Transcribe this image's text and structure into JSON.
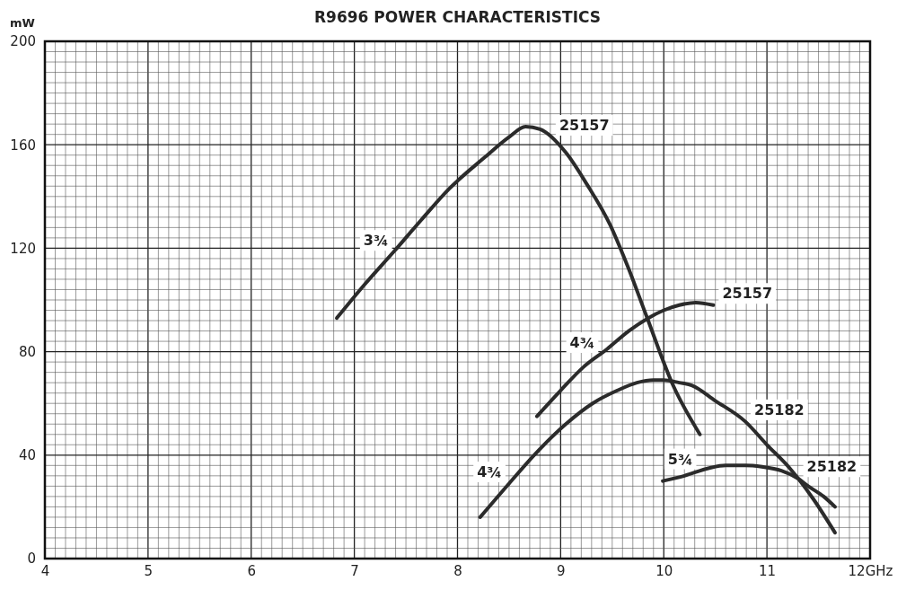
{
  "chart_data": {
    "type": "line",
    "title": "R9696 POWER CHARACTERISTICS",
    "ylabel": "mW",
    "xlim": [
      4,
      12
    ],
    "xticks": [
      4,
      5,
      6,
      7,
      8,
      9,
      10,
      11,
      {
        "value": 12,
        "label": "12GHz"
      }
    ],
    "ylim": [
      0,
      200
    ],
    "yticks": [
      0,
      40,
      80,
      120,
      160,
      200
    ],
    "grid": true,
    "marker": "none",
    "line_style": "solid",
    "series": [
      {
        "color": "#2b2b2b",
        "x": [
          6.83,
          7.1,
          7.39,
          7.65,
          7.92,
          8.26,
          8.5,
          8.66,
          8.8,
          9.05,
          9.25,
          9.48,
          9.65,
          9.83,
          10.09,
          10.35
        ],
        "values": [
          93,
          106,
          119,
          131,
          143,
          155,
          163,
          167,
          166,
          157,
          145,
          129,
          113,
          94,
          67,
          48
        ]
      },
      {
        "color": "#2b2b2b",
        "x": [
          8.77,
          9.0,
          9.22,
          9.45,
          9.66,
          9.85,
          10.0,
          10.15,
          10.31,
          10.48
        ],
        "values": [
          55,
          65,
          74,
          81,
          88,
          93,
          96,
          98,
          99,
          98
        ]
      },
      {
        "color": "#2b2b2b",
        "x": [
          8.22,
          8.5,
          8.79,
          9.05,
          9.31,
          9.55,
          9.74,
          9.9,
          10.0,
          10.15,
          10.27,
          10.5,
          10.79,
          11.0,
          11.22,
          11.45,
          11.66
        ],
        "values": [
          16,
          29,
          42,
          52,
          60,
          65,
          68,
          69,
          69,
          68,
          67,
          61,
          53,
          44,
          35,
          23,
          10
        ]
      },
      {
        "color": "#2b2b2b",
        "x": [
          9.99,
          10.2,
          10.44,
          10.6,
          10.79,
          10.95,
          11.14,
          11.3,
          11.4,
          11.55,
          11.66
        ],
        "values": [
          30,
          32,
          35,
          36,
          36,
          35.5,
          34,
          31,
          28,
          24,
          20
        ]
      }
    ],
    "annotations": [
      {
        "text": "25157",
        "x": 8.9,
        "y": 163
      },
      {
        "text": "3¾",
        "x": 7.4,
        "y": 118.5
      },
      {
        "text": "25157",
        "x": 10.48,
        "y": 98
      },
      {
        "text": "4¾",
        "x": 9.4,
        "y": 79
      },
      {
        "text": "25182",
        "x": 10.79,
        "y": 53
      },
      {
        "text": "4¾",
        "x": 8.5,
        "y": 29
      },
      {
        "text": "25182",
        "x": 11.3,
        "y": 31
      },
      {
        "text": "5¾",
        "x": 10.35,
        "y": 34
      }
    ]
  }
}
